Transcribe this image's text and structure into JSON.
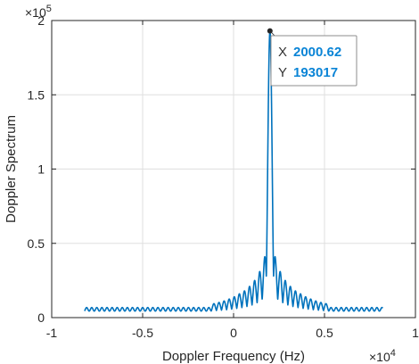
{
  "chart_data": {
    "type": "line",
    "title": "",
    "xlabel": "Doppler Frequency (Hz)",
    "ylabel": "Doppler Spectrum",
    "x_exponent_base": "×10",
    "x_exponent_power": "4",
    "y_exponent_base": "×10",
    "y_exponent_power": "5",
    "xlim": [
      -10000,
      10000
    ],
    "ylim": [
      0,
      200000
    ],
    "x_ticks": [
      -10000,
      -5000,
      0,
      5000,
      10000
    ],
    "x_tick_labels": [
      "-1",
      "-0.5",
      "0",
      "0.5",
      "1"
    ],
    "y_ticks": [
      0,
      50000,
      100000,
      150000,
      200000
    ],
    "y_tick_labels": [
      "0",
      "0.5",
      "1",
      "1.5",
      "2"
    ],
    "grid": true,
    "line_color": "#0072BD",
    "x_range": [
      -8200,
      8200
    ],
    "peak_x": 2000.62,
    "peak_y": 193017,
    "floor_level": 5600,
    "ripple_amplitude": 1200,
    "main_lobe_halfwidth": 260,
    "sidelobe_spacing": 280,
    "sidelobes": [
      {
        "x": 1720,
        "y": 41000
      },
      {
        "x": 2280,
        "y": 41000
      },
      {
        "x": 1440,
        "y": 31000
      },
      {
        "x": 2560,
        "y": 31000
      },
      {
        "x": 1160,
        "y": 25000
      },
      {
        "x": 2840,
        "y": 25000
      },
      {
        "x": 880,
        "y": 21000
      },
      {
        "x": 3120,
        "y": 21000
      },
      {
        "x": 600,
        "y": 18000
      },
      {
        "x": 3400,
        "y": 18000
      },
      {
        "x": 320,
        "y": 16000
      },
      {
        "x": 3680,
        "y": 16000
      },
      {
        "x": 40,
        "y": 14000
      },
      {
        "x": 3960,
        "y": 14000
      },
      {
        "x": -240,
        "y": 12500
      },
      {
        "x": 4240,
        "y": 12500
      },
      {
        "x": -520,
        "y": 11200
      },
      {
        "x": 4520,
        "y": 11200
      },
      {
        "x": -800,
        "y": 10200
      },
      {
        "x": 4800,
        "y": 10200
      },
      {
        "x": -1080,
        "y": 9400
      },
      {
        "x": 5080,
        "y": 9400
      }
    ],
    "datatip": {
      "x_key": "X",
      "x_value": "2000.62",
      "y_key": "Y",
      "y_value": "193017"
    }
  }
}
